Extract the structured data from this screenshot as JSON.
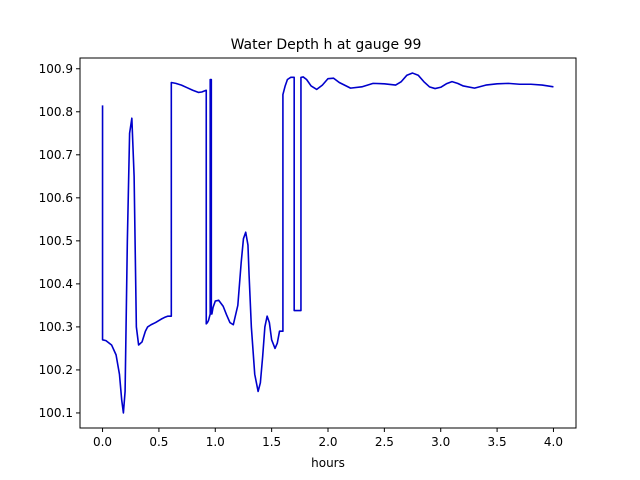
{
  "chart_data": {
    "type": "line",
    "title": "Water Depth h at gauge 99",
    "xlabel": "hours",
    "ylabel": "",
    "xlim": [
      -0.2,
      4.2
    ],
    "ylim": [
      100.065,
      100.925
    ],
    "x_ticks": [
      {
        "value": 0.0,
        "label": "0.0"
      },
      {
        "value": 0.5,
        "label": "0.5"
      },
      {
        "value": 1.0,
        "label": "1.0"
      },
      {
        "value": 1.5,
        "label": "1.5"
      },
      {
        "value": 2.0,
        "label": "2.0"
      },
      {
        "value": 2.5,
        "label": "2.5"
      },
      {
        "value": 3.0,
        "label": "3.0"
      },
      {
        "value": 3.5,
        "label": "3.5"
      },
      {
        "value": 4.0,
        "label": "4.0"
      }
    ],
    "y_ticks": [
      {
        "value": 100.1,
        "label": "100.1"
      },
      {
        "value": 100.2,
        "label": "100.2"
      },
      {
        "value": 100.3,
        "label": "100.3"
      },
      {
        "value": 100.4,
        "label": "100.4"
      },
      {
        "value": 100.5,
        "label": "100.5"
      },
      {
        "value": 100.6,
        "label": "100.6"
      },
      {
        "value": 100.7,
        "label": "100.7"
      },
      {
        "value": 100.8,
        "label": "100.8"
      },
      {
        "value": 100.9,
        "label": "100.9"
      }
    ],
    "grid": false,
    "series": [
      {
        "color": "#0000cc",
        "x": [
          0.0,
          0.0,
          0.03,
          0.08,
          0.12,
          0.15,
          0.17,
          0.185,
          0.2,
          0.22,
          0.24,
          0.26,
          0.28,
          0.3,
          0.32,
          0.35,
          0.38,
          0.4,
          0.43,
          0.47,
          0.52,
          0.55,
          0.58,
          0.61,
          0.61,
          0.65,
          0.7,
          0.75,
          0.8,
          0.85,
          0.88,
          0.92,
          0.92,
          0.93,
          0.94,
          0.955,
          0.955,
          0.965,
          0.965,
          0.97,
          0.98,
          1.0,
          1.03,
          1.07,
          1.1,
          1.13,
          1.16,
          1.2,
          1.23,
          1.25,
          1.27,
          1.29,
          1.3,
          1.32,
          1.35,
          1.38,
          1.4,
          1.42,
          1.44,
          1.46,
          1.48,
          1.5,
          1.53,
          1.55,
          1.57,
          1.6,
          1.6,
          1.62,
          1.64,
          1.67,
          1.7,
          1.7,
          1.76,
          1.76,
          1.78,
          1.81,
          1.85,
          1.9,
          1.95,
          2.0,
          2.05,
          2.1,
          2.2,
          2.3,
          2.4,
          2.5,
          2.6,
          2.65,
          2.7,
          2.75,
          2.8,
          2.85,
          2.9,
          2.95,
          3.0,
          3.05,
          3.1,
          3.15,
          3.2,
          3.3,
          3.4,
          3.5,
          3.6,
          3.7,
          3.8,
          3.9,
          4.0
        ],
        "y": [
          100.815,
          100.27,
          100.268,
          100.258,
          100.235,
          100.19,
          100.13,
          100.1,
          100.15,
          100.5,
          100.75,
          100.785,
          100.65,
          100.3,
          100.258,
          100.265,
          100.29,
          100.3,
          100.305,
          100.31,
          100.318,
          100.322,
          100.325,
          100.325,
          100.868,
          100.866,
          100.862,
          100.856,
          100.85,
          100.845,
          100.846,
          100.85,
          100.307,
          100.31,
          100.315,
          100.33,
          100.875,
          100.875,
          100.33,
          100.33,
          100.345,
          100.36,
          100.362,
          100.348,
          100.328,
          100.31,
          100.305,
          100.35,
          100.45,
          100.505,
          100.52,
          100.49,
          100.42,
          100.3,
          100.19,
          100.15,
          100.17,
          100.23,
          100.3,
          100.325,
          100.31,
          100.27,
          100.25,
          100.262,
          100.29,
          100.29,
          100.84,
          100.86,
          100.875,
          100.88,
          100.88,
          100.338,
          100.338,
          100.88,
          100.881,
          100.875,
          100.86,
          100.852,
          100.862,
          100.877,
          100.878,
          100.868,
          100.855,
          100.858,
          100.866,
          100.865,
          100.862,
          100.87,
          100.885,
          100.89,
          100.885,
          100.87,
          100.858,
          100.854,
          100.857,
          100.865,
          100.87,
          100.866,
          100.86,
          100.855,
          100.862,
          100.865,
          100.866,
          100.864,
          100.864,
          100.862,
          100.858
        ]
      }
    ]
  }
}
